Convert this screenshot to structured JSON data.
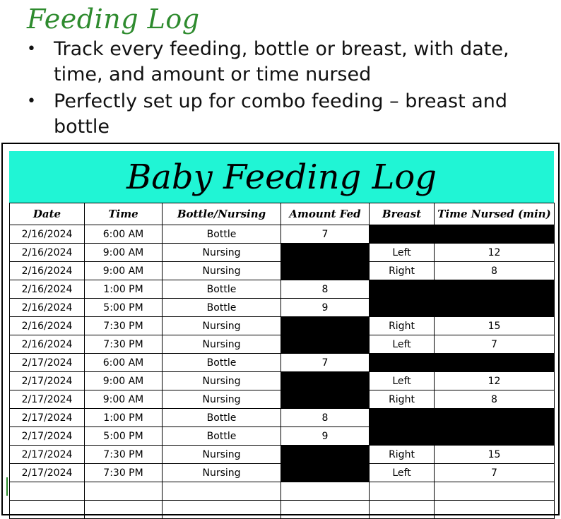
{
  "slide": {
    "title": "Feeding Log",
    "bullets": [
      "Track every feeding, bottle or breast, with date, time, and amount or time nursed",
      "Perfectly set up for combo feeding – breast and bottle"
    ]
  },
  "sheet": {
    "title": "Baby Feeding Log",
    "title_bg": "#20f5d5",
    "blank_cell_color": "#000000",
    "columns": [
      "Date",
      "Time",
      "Bottle/Nursing",
      "Amount Fed",
      "Breast",
      "Time Nursed (min)"
    ],
    "rows": [
      [
        "2/16/2024",
        "6:00 AM",
        "Bottle",
        "7",
        null,
        null
      ],
      [
        "2/16/2024",
        "9:00 AM",
        "Nursing",
        null,
        "Left",
        "12"
      ],
      [
        "2/16/2024",
        "9:00 AM",
        "Nursing",
        null,
        "Right",
        "8"
      ],
      [
        "2/16/2024",
        "1:00 PM",
        "Bottle",
        "8",
        null,
        null
      ],
      [
        "2/16/2024",
        "5:00 PM",
        "Bottle",
        "9",
        null,
        null
      ],
      [
        "2/16/2024",
        "7:30 PM",
        "Nursing",
        null,
        "Right",
        "15"
      ],
      [
        "2/16/2024",
        "7:30 PM",
        "Nursing",
        null,
        "Left",
        "7"
      ],
      [
        "2/17/2024",
        "6:00 AM",
        "Bottle",
        "7",
        null,
        null
      ],
      [
        "2/17/2024",
        "9:00 AM",
        "Nursing",
        null,
        "Left",
        "12"
      ],
      [
        "2/17/2024",
        "9:00 AM",
        "Nursing",
        null,
        "Right",
        "8"
      ],
      [
        "2/17/2024",
        "1:00 PM",
        "Bottle",
        "8",
        null,
        null
      ],
      [
        "2/17/2024",
        "5:00 PM",
        "Bottle",
        "9",
        null,
        null
      ],
      [
        "2/17/2024",
        "7:30 PM",
        "Nursing",
        null,
        "Right",
        "15"
      ],
      [
        "2/17/2024",
        "7:30 PM",
        "Nursing",
        null,
        "Left",
        "7"
      ],
      [
        "",
        "",
        "",
        "",
        "",
        ""
      ],
      [
        "",
        "",
        "",
        "",
        "",
        ""
      ]
    ]
  }
}
